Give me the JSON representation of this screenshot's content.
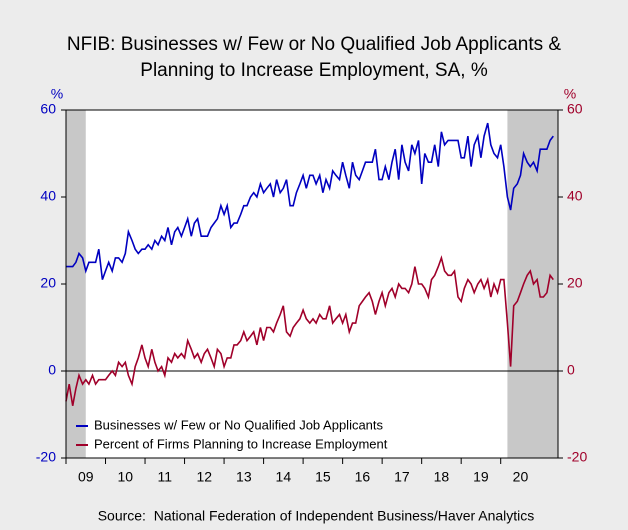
{
  "chart_data": {
    "type": "line",
    "title": "NFIB: Businesses w/ Few or No Qualified Job Applicants &",
    "subtitle": "Planning to Increase Employment, SA, %",
    "y_label": "%",
    "y2_label": "%",
    "source": "Source:  National Federation of Independent Business/Haver Analytics",
    "legend": "lower left",
    "xlim": [
      2009,
      2021.45
    ],
    "ylim": [
      -20,
      60
    ],
    "y2lim": [
      -20,
      60
    ],
    "yticks": [
      -20,
      0,
      20,
      40,
      60
    ],
    "y2ticks": [
      -20,
      0,
      20,
      40,
      60
    ],
    "xticks": [
      {
        "value": 2009.5,
        "label": "09"
      },
      {
        "value": 2010.5,
        "label": "10"
      },
      {
        "value": 2011.5,
        "label": "11"
      },
      {
        "value": 2012.5,
        "label": "12"
      },
      {
        "value": 2013.5,
        "label": "13"
      },
      {
        "value": 2014.5,
        "label": "14"
      },
      {
        "value": 2015.5,
        "label": "15"
      },
      {
        "value": 2016.5,
        "label": "16"
      },
      {
        "value": 2017.5,
        "label": "17"
      },
      {
        "value": 2018.5,
        "label": "18"
      },
      {
        "value": 2019.5,
        "label": "19"
      },
      {
        "value": 2020.5,
        "label": "20"
      }
    ],
    "recessions": [
      [
        2009,
        2009.5
      ],
      [
        2020.17,
        2021.45
      ]
    ],
    "x": [
      2009,
      2009.08,
      2009.17,
      2009.25,
      2009.33,
      2009.42,
      2009.5,
      2009.58,
      2009.67,
      2009.75,
      2009.83,
      2009.92,
      2010,
      2010.08,
      2010.17,
      2010.25,
      2010.33,
      2010.42,
      2010.5,
      2010.58,
      2010.67,
      2010.75,
      2010.83,
      2010.92,
      2011,
      2011.08,
      2011.17,
      2011.25,
      2011.33,
      2011.42,
      2011.5,
      2011.58,
      2011.67,
      2011.75,
      2011.83,
      2011.92,
      2012,
      2012.08,
      2012.17,
      2012.25,
      2012.33,
      2012.42,
      2012.5,
      2012.58,
      2012.67,
      2012.75,
      2012.83,
      2012.92,
      2013,
      2013.08,
      2013.17,
      2013.25,
      2013.33,
      2013.42,
      2013.5,
      2013.58,
      2013.67,
      2013.75,
      2013.83,
      2013.92,
      2014,
      2014.08,
      2014.17,
      2014.25,
      2014.33,
      2014.42,
      2014.5,
      2014.58,
      2014.67,
      2014.75,
      2014.83,
      2014.92,
      2015,
      2015.08,
      2015.17,
      2015.25,
      2015.33,
      2015.42,
      2015.5,
      2015.58,
      2015.67,
      2015.75,
      2015.83,
      2015.92,
      2016,
      2016.08,
      2016.17,
      2016.25,
      2016.33,
      2016.42,
      2016.5,
      2016.58,
      2016.67,
      2016.75,
      2016.83,
      2016.92,
      2017,
      2017.08,
      2017.17,
      2017.25,
      2017.33,
      2017.42,
      2017.5,
      2017.58,
      2017.67,
      2017.75,
      2017.83,
      2017.92,
      2018,
      2018.08,
      2018.17,
      2018.25,
      2018.33,
      2018.42,
      2018.5,
      2018.58,
      2018.67,
      2018.75,
      2018.83,
      2018.92,
      2019,
      2019.08,
      2019.17,
      2019.25,
      2019.33,
      2019.42,
      2019.5,
      2019.58,
      2019.67,
      2019.75,
      2019.83,
      2019.92,
      2020,
      2020.08,
      2020.17,
      2020.25,
      2020.33,
      2020.42,
      2020.5,
      2020.58,
      2020.67,
      2020.75,
      2020.83,
      2020.92,
      2021,
      2021.08,
      2021.17,
      2021.25,
      2021.33
    ],
    "series": [
      {
        "name": "Businesses w/ Few or No Qualified Job Applicants",
        "color": "#0000c0",
        "axis": "y",
        "values": [
          24,
          24,
          24,
          25,
          27,
          26,
          23,
          25,
          25,
          25,
          28,
          21,
          23,
          25,
          23,
          26,
          26,
          25,
          27,
          32,
          30,
          28,
          27,
          28,
          28,
          29,
          28,
          30,
          29,
          31,
          30,
          33,
          29,
          32,
          33,
          31,
          33,
          35,
          31,
          34,
          35,
          31,
          31,
          31,
          33,
          34,
          35,
          38,
          36,
          38,
          33,
          34,
          34,
          36,
          38,
          38,
          40,
          41,
          40,
          43,
          41,
          42,
          43,
          40,
          44,
          41,
          42,
          44,
          38,
          38,
          41,
          43,
          45,
          42,
          45,
          45,
          43,
          45,
          41,
          44,
          42,
          46,
          45,
          44,
          48,
          45,
          42,
          48,
          45,
          44,
          46,
          48,
          48,
          48,
          51,
          44,
          44,
          47,
          44,
          48,
          51,
          44,
          52,
          48,
          46,
          52,
          50,
          53,
          43,
          50,
          48,
          48,
          52,
          47,
          55,
          52,
          53,
          53,
          53,
          53,
          49,
          49,
          54,
          47,
          52,
          54,
          49,
          54,
          57,
          52,
          50,
          49,
          52,
          47,
          40,
          37,
          42,
          43,
          45,
          50,
          48,
          47,
          48,
          46,
          51,
          51,
          51,
          53,
          54
        ]
      },
      {
        "name": "Percent of Firms Planning to Increase Employment",
        "color": "#a0002a",
        "axis": "y2",
        "values": [
          -7,
          -3,
          -8,
          -4,
          -1,
          -3,
          -2,
          -3,
          -1,
          -3,
          -2,
          -2,
          -2,
          -1,
          0,
          -1,
          2,
          1,
          2,
          -1,
          -3,
          1,
          3,
          6,
          3,
          1,
          5,
          2,
          0,
          1,
          -1,
          3,
          2,
          4,
          3,
          4,
          3,
          7,
          5,
          3,
          4,
          2,
          4,
          5,
          3,
          1,
          5,
          4,
          1,
          3,
          3,
          6,
          6,
          7,
          9,
          7,
          8,
          9,
          6,
          10,
          7,
          10,
          10,
          9,
          11,
          13,
          15,
          9,
          8,
          10,
          11,
          12,
          14,
          12,
          11,
          12,
          11,
          13,
          12,
          12,
          15,
          11,
          12,
          13,
          11,
          13,
          9,
          11,
          11,
          15,
          16,
          17,
          18,
          16,
          13,
          16,
          18,
          15,
          18,
          19,
          17,
          20,
          19,
          19,
          18,
          20,
          24,
          20,
          20,
          19,
          17,
          21,
          22,
          24,
          26,
          23,
          22,
          22,
          23,
          17,
          16,
          19,
          21,
          20,
          18,
          20,
          21,
          19,
          21,
          17,
          20,
          18,
          21,
          21,
          11,
          1,
          15,
          16,
          18,
          20,
          22,
          23,
          20,
          21,
          17,
          17,
          18,
          22,
          21
        ]
      }
    ]
  }
}
